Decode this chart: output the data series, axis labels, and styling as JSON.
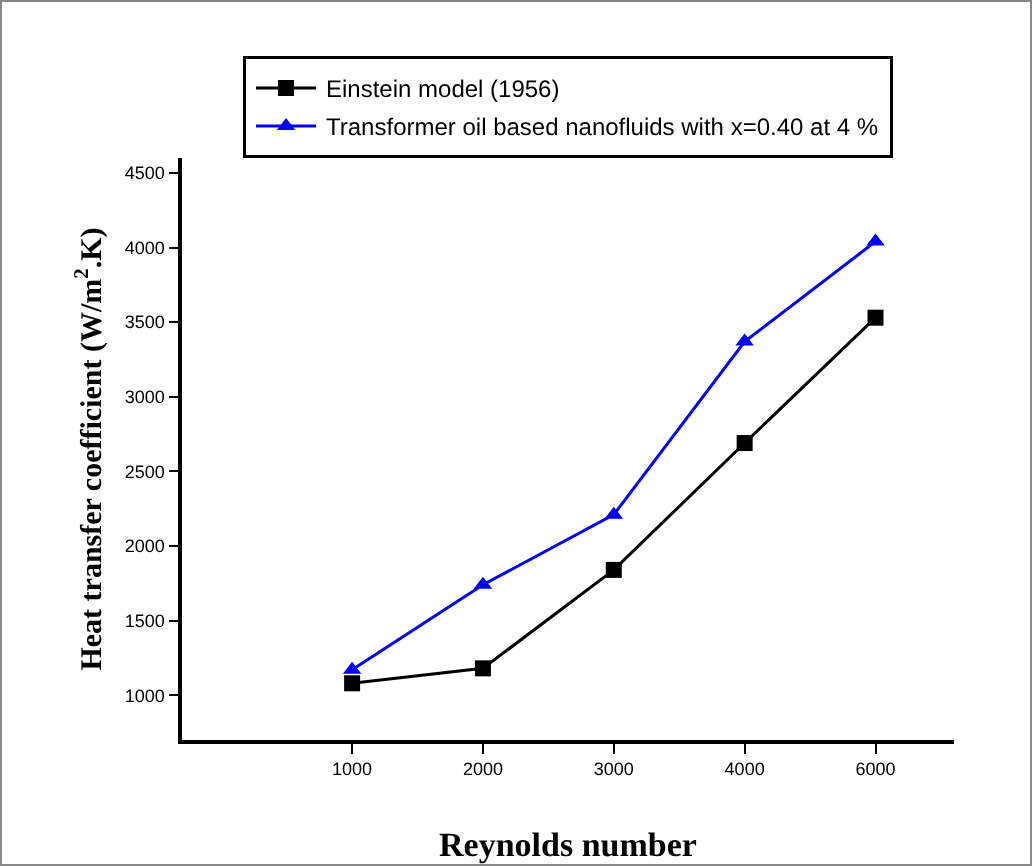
{
  "chart_data": {
    "type": "line",
    "xlabel": "Reynolds number",
    "ylabel": "Heat transfer coefficient (W/m$^{2}$.K)",
    "categories": [
      "1000",
      "2000",
      "3000",
      "4000",
      "6000"
    ],
    "series": [
      {
        "name": "Einstein model (1956)",
        "color": "#000000",
        "marker": "square",
        "values": [
          1080,
          1180,
          1840,
          2690,
          3530
        ]
      },
      {
        "name": "Transformer oil based nanofluids with x=0.40 at 4 %",
        "color": "#0000ff",
        "marker": "triangle",
        "values": [
          1170,
          1740,
          2210,
          3370,
          4040
        ]
      }
    ],
    "ylim": [
      700,
      4600
    ],
    "yticks": [
      1000,
      1500,
      2000,
      2500,
      3000,
      3500,
      4000,
      4500
    ],
    "grid": false,
    "legend": "top",
    "line_style": "solid"
  }
}
